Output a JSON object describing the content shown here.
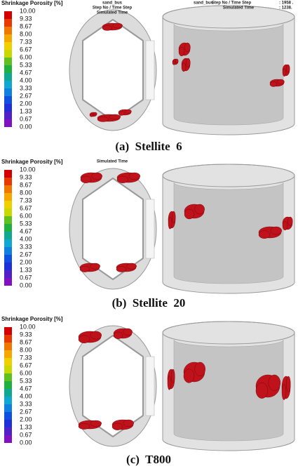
{
  "panels": [
    {
      "caption": "(a)  Stellite  6",
      "legend_title": "Shrinkage Porosity [%]",
      "legend_values": [
        "10.00",
        "9.33",
        "8.67",
        "8.00",
        "7.33",
        "6.67",
        "6.00",
        "5.33",
        "4.67",
        "4.00",
        "3.33",
        "2.67",
        "2.00",
        "1.33",
        "0.67",
        "0.00"
      ],
      "header_left": [
        "sand_bus",
        "Step No / Time Step",
        "Simulated Time"
      ],
      "header_right": [
        "sand_bus",
        "Step No / Time Step",
        "Simulated Time",
        ": 1958 .",
        ": 1238."
      ]
    },
    {
      "caption": "(b)  Stellite  20",
      "legend_title": "Shrinkage Porosity [%]",
      "legend_values": [
        "10.00",
        "9.33",
        "8.67",
        "8.00",
        "7.33",
        "6.67",
        "6.00",
        "5.33",
        "4.67",
        "4.00",
        "3.33",
        "2.67",
        "2.00",
        "1.33",
        "0.67",
        "0.00"
      ],
      "header_left": [
        "Simulated Time"
      ]
    },
    {
      "caption": "(c)  T800",
      "legend_title": "Shrinkage Porosity [%]",
      "legend_values": [
        "10.00",
        "9.33",
        "8.67",
        "8.00",
        "7.33",
        "6.67",
        "6.00",
        "5.33",
        "4.67",
        "4.00",
        "3.33",
        "2.67",
        "2.00",
        "1.33",
        "0.67",
        "0.00"
      ]
    }
  ]
}
